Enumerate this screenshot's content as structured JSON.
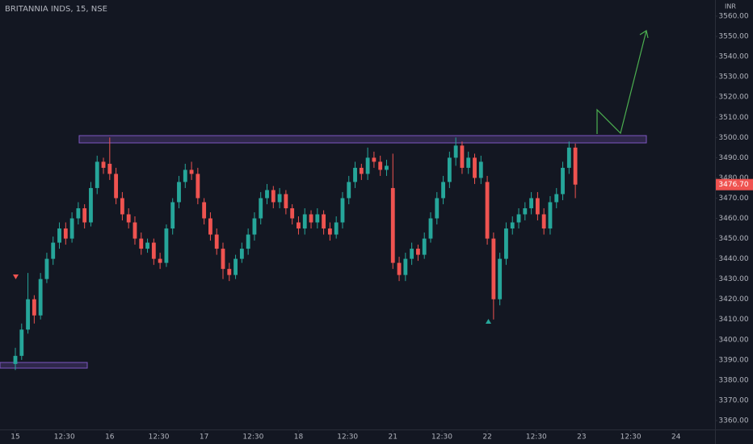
{
  "chart_data": {
    "type": "candlestick",
    "title": "BRITANNIA INDS, 15, NSE",
    "currency": "INR",
    "up_color": "#26a69a",
    "down_color": "#ef5350",
    "open": [
      3388,
      3392,
      3405,
      3420,
      3412,
      3430,
      3440,
      3448,
      3455,
      3450,
      3460,
      3465,
      3458,
      3475,
      3488,
      3487,
      3482,
      3470,
      3462,
      3458,
      3450,
      3445,
      3448,
      3440,
      3438,
      3455,
      3468,
      3478,
      3484,
      3482,
      3468,
      3460,
      3452,
      3445,
      3435,
      3432,
      3440,
      3445,
      3452,
      3460,
      3470,
      3474,
      3468,
      3472,
      3465,
      3458,
      3455,
      3462,
      3458,
      3462,
      3455,
      3452,
      3458,
      3470,
      3478,
      3485,
      3482,
      3490,
      3488,
      3484,
      3475,
      3438,
      3432,
      3440,
      3445,
      3442,
      3450,
      3460,
      3470,
      3478,
      3490,
      3496,
      3485,
      3490,
      3480,
      3478,
      3450,
      3420,
      3440,
      3455,
      3458,
      3462,
      3465,
      3470,
      3462,
      3455,
      3468,
      3472,
      3485,
      3495
    ],
    "high": [
      3396,
      3408,
      3433,
      3422,
      3433,
      3443,
      3451,
      3458,
      3458,
      3463,
      3468,
      3467,
      3478,
      3491,
      3490,
      3500,
      3485,
      3473,
      3465,
      3461,
      3453,
      3450,
      3450,
      3443,
      3457,
      3470,
      3481,
      3487,
      3488,
      3485,
      3470,
      3463,
      3455,
      3448,
      3438,
      3442,
      3448,
      3455,
      3463,
      3473,
      3477,
      3476,
      3475,
      3474,
      3467,
      3461,
      3465,
      3464,
      3465,
      3464,
      3458,
      3461,
      3473,
      3481,
      3488,
      3487,
      3495,
      3493,
      3491,
      3489,
      3492,
      3441,
      3443,
      3448,
      3447,
      3453,
      3463,
      3473,
      3481,
      3493,
      3500,
      3498,
      3493,
      3492,
      3491,
      3481,
      3453,
      3443,
      3458,
      3461,
      3465,
      3468,
      3473,
      3473,
      3465,
      3471,
      3475,
      3488,
      3498,
      3497
    ],
    "low": [
      3385,
      3390,
      3403,
      3408,
      3410,
      3428,
      3437,
      3445,
      3447,
      3448,
      3457,
      3455,
      3456,
      3472,
      3482,
      3479,
      3467,
      3459,
      3455,
      3447,
      3442,
      3443,
      3437,
      3435,
      3436,
      3452,
      3465,
      3475,
      3479,
      3467,
      3457,
      3449,
      3442,
      3430,
      3429,
      3430,
      3438,
      3442,
      3449,
      3457,
      3467,
      3465,
      3465,
      3462,
      3457,
      3452,
      3452,
      3455,
      3455,
      3452,
      3449,
      3450,
      3455,
      3467,
      3475,
      3479,
      3479,
      3485,
      3481,
      3481,
      3435,
      3429,
      3429,
      3437,
      3439,
      3440,
      3448,
      3457,
      3467,
      3475,
      3486,
      3482,
      3482,
      3477,
      3477,
      3447,
      3410,
      3417,
      3437,
      3452,
      3455,
      3459,
      3462,
      3459,
      3452,
      3452,
      3465,
      3469,
      3482,
      3470
    ],
    "close": [
      3392,
      3405,
      3420,
      3412,
      3430,
      3440,
      3448,
      3455,
      3450,
      3460,
      3465,
      3458,
      3475,
      3488,
      3485,
      3482,
      3470,
      3462,
      3458,
      3450,
      3445,
      3448,
      3440,
      3438,
      3455,
      3468,
      3478,
      3484,
      3482,
      3470,
      3460,
      3452,
      3445,
      3435,
      3432,
      3440,
      3445,
      3452,
      3460,
      3470,
      3474,
      3468,
      3472,
      3465,
      3460,
      3455,
      3462,
      3458,
      3462,
      3455,
      3452,
      3458,
      3470,
      3478,
      3485,
      3482,
      3490,
      3488,
      3484,
      3486,
      3438,
      3432,
      3440,
      3445,
      3442,
      3450,
      3460,
      3470,
      3478,
      3490,
      3496,
      3485,
      3490,
      3480,
      3488,
      3450,
      3420,
      3440,
      3455,
      3458,
      3462,
      3465,
      3470,
      3462,
      3455,
      3468,
      3472,
      3485,
      3495,
      3476.7
    ],
    "last_price": {
      "value": 3476.7,
      "label": "3476.70"
    },
    "xlim": [
      -2.44,
      111.2
    ],
    "xticks": [
      {
        "value": 0,
        "label": "15"
      },
      {
        "value": 7.8,
        "label": "12:30"
      },
      {
        "value": 15,
        "label": "16"
      },
      {
        "value": 22.8,
        "label": "12:30"
      },
      {
        "value": 30,
        "label": "17"
      },
      {
        "value": 37.8,
        "label": "12:30"
      },
      {
        "value": 45,
        "label": "18"
      },
      {
        "value": 52.8,
        "label": "12:30"
      },
      {
        "value": 60,
        "label": "21"
      },
      {
        "value": 67.8,
        "label": "12:30"
      },
      {
        "value": 75,
        "label": "22"
      },
      {
        "value": 82.8,
        "label": "12:30"
      },
      {
        "value": 90,
        "label": "23"
      },
      {
        "value": 97.8,
        "label": "12:30"
      },
      {
        "value": 105,
        "label": "24"
      }
    ],
    "ylim": [
      3355.6,
      3568
    ],
    "yticks": [
      {
        "value": 3360,
        "label": "3360.00"
      },
      {
        "value": 3370,
        "label": "3370.00"
      },
      {
        "value": 3380,
        "label": "3380.00"
      },
      {
        "value": 3390,
        "label": "3390.00"
      },
      {
        "value": 3400,
        "label": "3400.00"
      },
      {
        "value": 3410,
        "label": "3410.00"
      },
      {
        "value": 3420,
        "label": "3420.00"
      },
      {
        "value": 3430,
        "label": "3430.00"
      },
      {
        "value": 3440,
        "label": "3440.00"
      },
      {
        "value": 3450,
        "label": "3450.00"
      },
      {
        "value": 3460,
        "label": "3460.00"
      },
      {
        "value": 3470,
        "label": "3470.00"
      },
      {
        "value": 3480,
        "label": "3480.00"
      },
      {
        "value": 3490,
        "label": "3490.00"
      },
      {
        "value": 3500,
        "label": "3500.00"
      },
      {
        "value": 3510,
        "label": "3510.00"
      },
      {
        "value": 3520,
        "label": "3520.00"
      },
      {
        "value": 3530,
        "label": "3530.00"
      },
      {
        "value": 3540,
        "label": "3540.00"
      },
      {
        "value": 3550,
        "label": "3550.00"
      },
      {
        "value": 3560,
        "label": "3560.00"
      }
    ]
  }
}
